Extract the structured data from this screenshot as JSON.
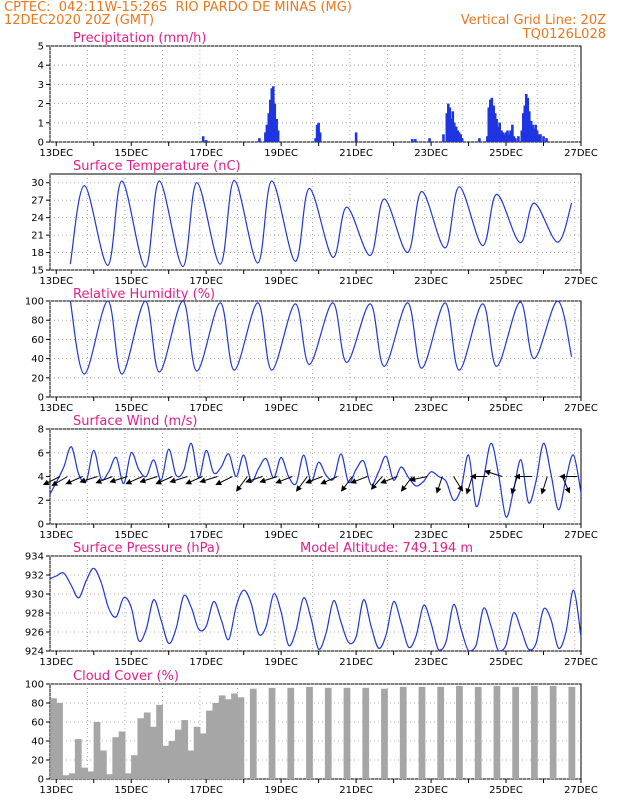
{
  "header": {
    "line1_left": "CPTEC:  042:11W-15:26S  RIO PARDO DE MINAS (MG)",
    "line2_left": "12DEC2020 20Z (GMT)",
    "line2_right": "Vertical Grid Line: 20Z",
    "line3_right": "TQ0126L028"
  },
  "colors": {
    "header": "#e8781e",
    "title": "#e0208a",
    "series": "#1f35e0",
    "cloud": "#a6a6a6"
  },
  "chart_data": [
    {
      "id": "precip",
      "type": "bar",
      "title": "Precipitation (mm/h)",
      "ylim": [
        0,
        5
      ],
      "yticks": [
        0,
        1,
        2,
        3,
        4,
        5
      ],
      "x_days": [
        12.833,
        27.0
      ],
      "date_labels": [
        "13DEC",
        "15DEC",
        "17DEC",
        "19DEC",
        "21DEC",
        "23DEC",
        "25DEC",
        "27DEC"
      ],
      "x": [
        16.92,
        17.0,
        18.42,
        18.58,
        18.62,
        18.67,
        18.71,
        18.75,
        18.79,
        18.83,
        18.88,
        18.92,
        19.92,
        19.96,
        20.0,
        20.04,
        21.0,
        22.5,
        22.58,
        22.96,
        23.33,
        23.42,
        23.46,
        23.5,
        23.54,
        23.58,
        23.62,
        23.67,
        23.71,
        23.75,
        23.79,
        23.83,
        24.29,
        24.5,
        24.54,
        24.58,
        24.62,
        24.67,
        24.71,
        24.75,
        24.79,
        24.83,
        24.88,
        24.92,
        24.96,
        25.0,
        25.04,
        25.08,
        25.12,
        25.17,
        25.21,
        25.25,
        25.33,
        25.42,
        25.46,
        25.5,
        25.54,
        25.58,
        25.62,
        25.67,
        25.71,
        25.75,
        25.79,
        25.83,
        25.88,
        25.92,
        26.0,
        26.08
      ],
      "values": [
        0.3,
        0.1,
        0.2,
        0.5,
        0.9,
        1.5,
        2.2,
        2.8,
        2.9,
        2.0,
        1.2,
        0.6,
        0.2,
        0.9,
        1.0,
        0.5,
        0.5,
        0.15,
        0.15,
        0.2,
        0.4,
        1.5,
        2.0,
        1.8,
        1.2,
        1.6,
        1.0,
        0.8,
        0.6,
        0.5,
        0.4,
        0.2,
        0.2,
        0.3,
        1.8,
        2.2,
        2.3,
        1.9,
        1.5,
        1.2,
        0.8,
        1.0,
        0.6,
        0.5,
        0.4,
        0.5,
        0.6,
        0.4,
        0.6,
        0.9,
        0.3,
        0.2,
        0.3,
        0.6,
        1.5,
        1.9,
        2.5,
        2.3,
        1.6,
        1.1,
        0.9,
        0.7,
        0.9,
        0.6,
        0.4,
        0.4,
        0.3,
        0.2
      ]
    },
    {
      "id": "temp",
      "type": "line",
      "title": "Surface Temperature (nC)",
      "ylim": [
        15,
        31.5
      ],
      "yticks": [
        15,
        18,
        21,
        24,
        27,
        30
      ],
      "x_days": [
        12.833,
        27.0
      ],
      "date_labels": [
        "13DEC",
        "15DEC",
        "17DEC",
        "19DEC",
        "21DEC",
        "23DEC",
        "25DEC",
        "27DEC"
      ],
      "min_day": [
        16.0,
        15.8,
        15.5,
        15.6,
        16.0,
        16.2,
        16.5,
        17.2,
        17.5,
        18.0,
        18.8,
        19.2,
        19.7,
        19.8,
        20.0
      ],
      "max_day": [
        29.5,
        30.3,
        30.3,
        30.0,
        30.4,
        30.3,
        29.0,
        25.8,
        27.2,
        28.5,
        29.3,
        28.0,
        26.5,
        26.5,
        27.0
      ]
    },
    {
      "id": "rh",
      "type": "line",
      "title": "Relative Humidity (%)",
      "ylim": [
        0,
        100
      ],
      "yticks": [
        0,
        20,
        40,
        60,
        80,
        100
      ],
      "x_days": [
        12.833,
        27.0
      ],
      "date_labels": [
        "13DEC",
        "15DEC",
        "17DEC",
        "19DEC",
        "21DEC",
        "23DEC",
        "25DEC",
        "27DEC"
      ],
      "max_day": [
        100,
        100,
        100,
        100,
        98,
        98,
        97,
        98,
        97,
        98,
        98,
        97,
        99,
        100,
        100
      ],
      "min_day": [
        24,
        24,
        26,
        27,
        28,
        28,
        34,
        36,
        32,
        30,
        28,
        32,
        40,
        42,
        40
      ]
    },
    {
      "id": "wind",
      "type": "line",
      "title": "Surface Wind (m/s)",
      "ylim": [
        0,
        8
      ],
      "yticks": [
        0,
        2,
        4,
        6,
        8
      ],
      "x_days": [
        12.833,
        27.0
      ],
      "date_labels": [
        "13DEC",
        "15DEC",
        "17DEC",
        "19DEC",
        "21DEC",
        "23DEC",
        "25DEC",
        "27DEC"
      ],
      "x": [
        12.83,
        13.0,
        13.2,
        13.4,
        13.6,
        13.8,
        14.0,
        14.2,
        14.4,
        14.6,
        14.8,
        15.0,
        15.2,
        15.4,
        15.6,
        15.8,
        16.0,
        16.2,
        16.4,
        16.6,
        16.8,
        17.0,
        17.2,
        17.4,
        17.6,
        17.8,
        18.0,
        18.2,
        18.4,
        18.6,
        18.8,
        19.0,
        19.2,
        19.4,
        19.6,
        19.8,
        20.0,
        20.2,
        20.4,
        20.6,
        20.8,
        21.0,
        21.2,
        21.4,
        21.6,
        21.8,
        22.0,
        22.2,
        22.4,
        22.6,
        22.8,
        23.0,
        23.2,
        23.4,
        23.6,
        23.8,
        24.0,
        24.2,
        24.4,
        24.6,
        24.8,
        25.0,
        25.2,
        25.4,
        25.6,
        25.8,
        26.0,
        26.2,
        26.4,
        26.6,
        26.8,
        27.0
      ],
      "values": [
        2.5,
        3.5,
        4.8,
        6.5,
        4.2,
        3.6,
        6.2,
        3.8,
        4.4,
        5.6,
        3.4,
        6.0,
        4.6,
        4.0,
        5.4,
        3.7,
        6.3,
        4.1,
        4.5,
        6.8,
        3.9,
        6.2,
        4.3,
        4.8,
        5.9,
        4.0,
        5.8,
        3.6,
        4.7,
        5.5,
        3.9,
        5.6,
        4.0,
        3.4,
        5.8,
        3.6,
        5.2,
        4.1,
        3.8,
        5.9,
        3.5,
        4.6,
        5.3,
        3.3,
        4.4,
        5.7,
        3.7,
        4.8,
        3.9,
        3.2,
        3.6,
        4.4,
        4.0,
        3.6,
        2.0,
        3.0,
        5.8,
        1.5,
        3.8,
        6.8,
        4.2,
        0.6,
        2.8,
        5.4,
        1.8,
        3.6,
        6.8,
        4.2,
        1.2,
        3.8,
        5.8,
        2.6
      ]
    },
    {
      "id": "pres",
      "type": "line",
      "title": "Surface Pressure (hPa)",
      "annotation": "Model Altitude: 749.194 m",
      "ylim": [
        924,
        934
      ],
      "yticks": [
        924,
        926,
        928,
        930,
        932,
        934
      ],
      "x_days": [
        12.833,
        27.0
      ],
      "date_labels": [
        "13DEC",
        "15DEC",
        "17DEC",
        "19DEC",
        "21DEC",
        "23DEC",
        "25DEC",
        "27DEC"
      ],
      "x": [
        12.83,
        13.0,
        13.2,
        13.4,
        13.6,
        13.8,
        14.0,
        14.2,
        14.4,
        14.6,
        14.8,
        15.0,
        15.2,
        15.4,
        15.6,
        15.8,
        16.0,
        16.2,
        16.4,
        16.6,
        16.8,
        17.0,
        17.2,
        17.4,
        17.6,
        17.8,
        18.0,
        18.2,
        18.4,
        18.6,
        18.8,
        19.0,
        19.2,
        19.4,
        19.6,
        19.8,
        20.0,
        20.2,
        20.4,
        20.6,
        20.8,
        21.0,
        21.2,
        21.4,
        21.6,
        21.8,
        22.0,
        22.2,
        22.4,
        22.6,
        22.8,
        23.0,
        23.2,
        23.4,
        23.6,
        23.8,
        24.0,
        24.2,
        24.4,
        24.6,
        24.8,
        25.0,
        25.2,
        25.4,
        25.6,
        25.8,
        26.0,
        26.2,
        26.4,
        26.6,
        26.8,
        27.0
      ],
      "values": [
        931.6,
        931.9,
        932.2,
        930.9,
        929.6,
        931.4,
        932.7,
        931.2,
        928.5,
        927.6,
        929.6,
        928.6,
        925.1,
        926.3,
        929.4,
        927.2,
        924.8,
        926.4,
        929.8,
        928.6,
        926.3,
        926.6,
        929.2,
        927.3,
        925.2,
        928.7,
        930.4,
        929.0,
        925.8,
        926.6,
        930.0,
        928.1,
        924.6,
        926.2,
        929.6,
        927.4,
        924.2,
        925.9,
        929.3,
        927.0,
        924.9,
        925.5,
        929.4,
        926.6,
        924.3,
        925.7,
        929.2,
        927.0,
        924.4,
        925.6,
        928.8,
        926.9,
        924.1,
        925.0,
        928.9,
        926.3,
        923.8,
        924.6,
        928.5,
        926.6,
        923.7,
        924.6,
        928.0,
        926.3,
        924.2,
        924.8,
        928.4,
        927.3,
        924.3,
        926.0,
        930.4,
        925.5
      ]
    },
    {
      "id": "cloud",
      "type": "bar",
      "title": "Cloud Cover (%)",
      "ylim": [
        0,
        100
      ],
      "yticks": [
        0,
        20,
        40,
        60,
        80,
        100
      ],
      "x_days": [
        12.833,
        27.0
      ],
      "date_labels": [
        "13DEC",
        "15DEC",
        "17DEC",
        "19DEC",
        "21DEC",
        "23DEC",
        "25DEC",
        "27DEC"
      ],
      "x": [
        12.92,
        13.08,
        13.25,
        13.42,
        13.58,
        13.75,
        13.92,
        14.08,
        14.25,
        14.42,
        14.58,
        14.75,
        14.92,
        15.08,
        15.25,
        15.42,
        15.58,
        15.75,
        15.92,
        16.08,
        16.25,
        16.42,
        16.58,
        16.75,
        16.92,
        17.08,
        17.25,
        17.42,
        17.58,
        17.75,
        17.92,
        18.25,
        18.75,
        19.25,
        19.75,
        20.25,
        20.75,
        21.25,
        21.75,
        22.25,
        22.75,
        23.25,
        23.75,
        24.25,
        24.75,
        25.25,
        25.75,
        26.25,
        26.75
      ],
      "values": [
        85,
        80,
        4,
        6,
        42,
        12,
        8,
        60,
        30,
        5,
        44,
        50,
        6,
        25,
        64,
        70,
        55,
        78,
        35,
        40,
        52,
        62,
        30,
        55,
        48,
        72,
        80,
        88,
        84,
        90,
        86,
        95,
        96,
        96,
        97,
        96,
        96,
        96,
        95,
        97,
        97,
        97,
        98,
        97,
        98,
        97,
        98,
        98,
        97
      ]
    }
  ]
}
